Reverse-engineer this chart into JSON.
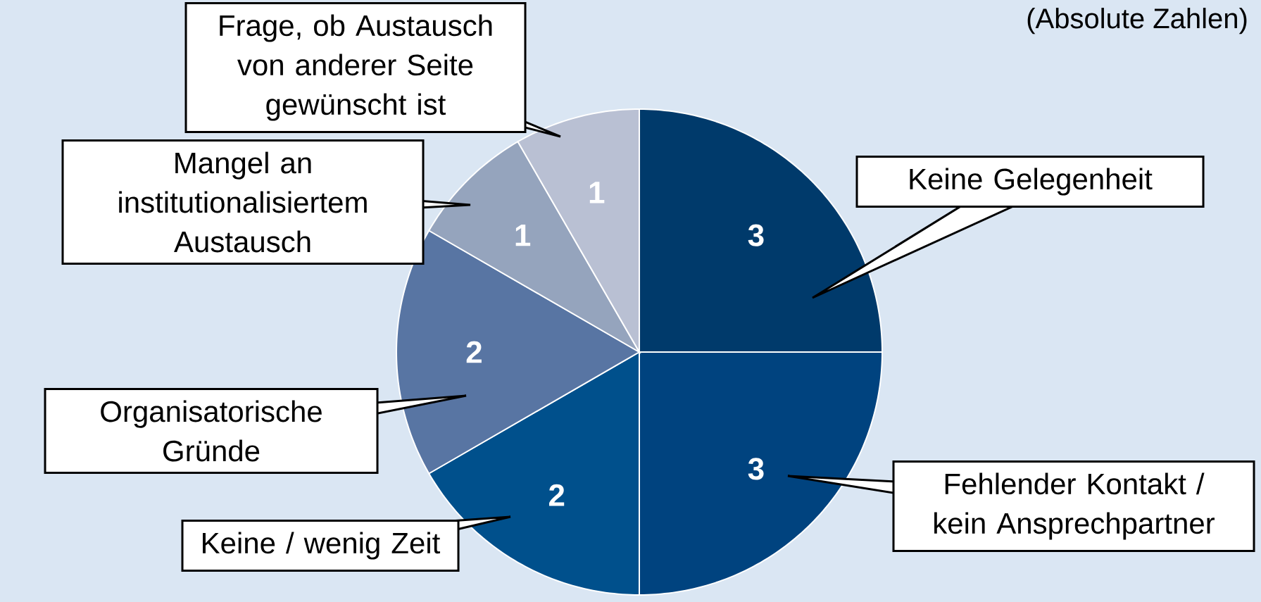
{
  "chart_data": {
    "type": "pie",
    "categories": [
      "Keine Gelegenheit",
      "Fehlender Kontakt / kein Ansprechpartner",
      "Keine / wenig Zeit",
      "Organisatorische Gründe",
      "Mangel an institutionalisiertem Austausch",
      "Frage, ob Austausch von anderer Seite gewünscht ist"
    ],
    "values": [
      3,
      3,
      2,
      2,
      1,
      1
    ],
    "colors": [
      "#003a6b",
      "#00437f",
      "#00508c",
      "#5875a3",
      "#95a4bd",
      "#b9c0d3"
    ],
    "data_labels": true,
    "annotations": [
      "(Absolute Zahlen)"
    ]
  }
}
